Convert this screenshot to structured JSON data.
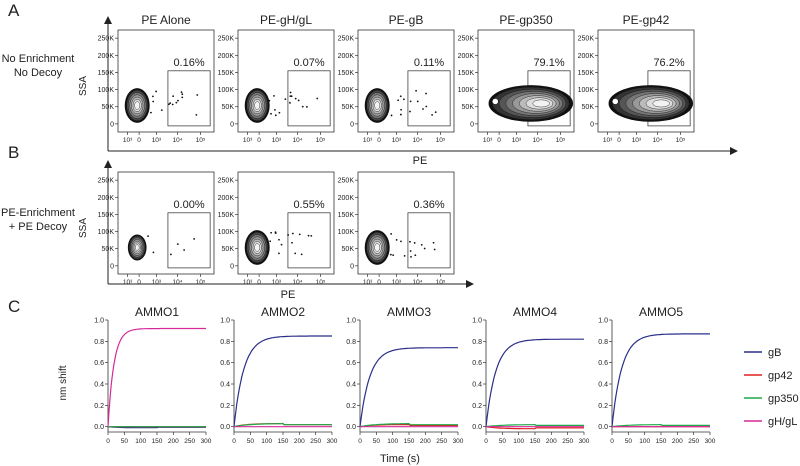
{
  "panels": {
    "A": {
      "letter": "A",
      "row_label": [
        "No Enrichment",
        "No Decoy"
      ],
      "y_label": "SSA",
      "x_label": "PE",
      "plots": [
        {
          "title": "PE Alone",
          "gate_pct": "0.16%",
          "kind": "tight"
        },
        {
          "title": "PE-gH/gL",
          "gate_pct": "0.07%",
          "kind": "tight"
        },
        {
          "title": "PE-gB",
          "gate_pct": "0.11%",
          "kind": "tight"
        },
        {
          "title": "PE-gp350",
          "gate_pct": "79.1%",
          "kind": "spread"
        },
        {
          "title": "PE-gp42",
          "gate_pct": "76.2%",
          "kind": "spread"
        }
      ]
    },
    "B": {
      "letter": "B",
      "row_label": [
        "PE-Enrichment",
        "+ PE Decoy"
      ],
      "y_label": "SSA",
      "x_label": "PE",
      "plots": [
        {
          "title": "",
          "gate_pct": "0.00%",
          "kind": "small"
        },
        {
          "title": "",
          "gate_pct": "0.55%",
          "kind": "tight"
        },
        {
          "title": "",
          "gate_pct": "0.36%",
          "kind": "tight"
        }
      ]
    },
    "C": {
      "letter": "C",
      "y_label": "nm shift",
      "x_label": "Time (s)"
    }
  },
  "flow_axes": {
    "y_ticks": [
      "250K",
      "200K",
      "150K",
      "100K",
      "50K",
      "0"
    ],
    "x_ticks": [
      "10³",
      "0",
      "10³",
      "10⁴",
      "10⁵"
    ]
  },
  "chart_data": {
    "type": "line",
    "title": "",
    "xlabel": "Time (s)",
    "ylabel": "nm shift",
    "xlim": [
      0,
      300
    ],
    "ylim": [
      -0.05,
      1.0
    ],
    "x_ticks": [
      0,
      50,
      100,
      150,
      200,
      250,
      300
    ],
    "y_ticks": [
      0.0,
      0.2,
      0.4,
      0.6,
      0.8,
      1.0
    ],
    "y_tick_labels": [
      "0.0",
      "0.2",
      "0.4",
      "0.6",
      "0.8",
      "1.0"
    ],
    "legend": [
      {
        "name": "gB",
        "color": "#2b2f8a"
      },
      {
        "name": "gp42",
        "color": "#e02020"
      },
      {
        "name": "gp350",
        "color": "#1fa84a"
      },
      {
        "name": "gH/gL",
        "color": "#d62a9a"
      }
    ],
    "subplots": [
      {
        "title": "AMMO1",
        "plateau": {
          "gB": -0.01,
          "gp42": 0.0,
          "gp350": 0.0,
          "gH/gL": 0.92
        }
      },
      {
        "title": "AMMO2",
        "plateau": {
          "gB": 0.85,
          "gp42": 0.03,
          "gp350": 0.03,
          "gH/gL": 0.0
        }
      },
      {
        "title": "AMMO3",
        "plateau": {
          "gB": 0.74,
          "gp42": 0.02,
          "gp350": 0.03,
          "gH/gL": 0.0
        }
      },
      {
        "title": "AMMO4",
        "plateau": {
          "gB": 0.82,
          "gp42": -0.02,
          "gp350": 0.02,
          "gH/gL": 0.0
        }
      },
      {
        "title": "AMMO5",
        "plateau": {
          "gB": 0.87,
          "gp42": 0.0,
          "gp350": 0.02,
          "gH/gL": 0.0
        }
      }
    ]
  }
}
